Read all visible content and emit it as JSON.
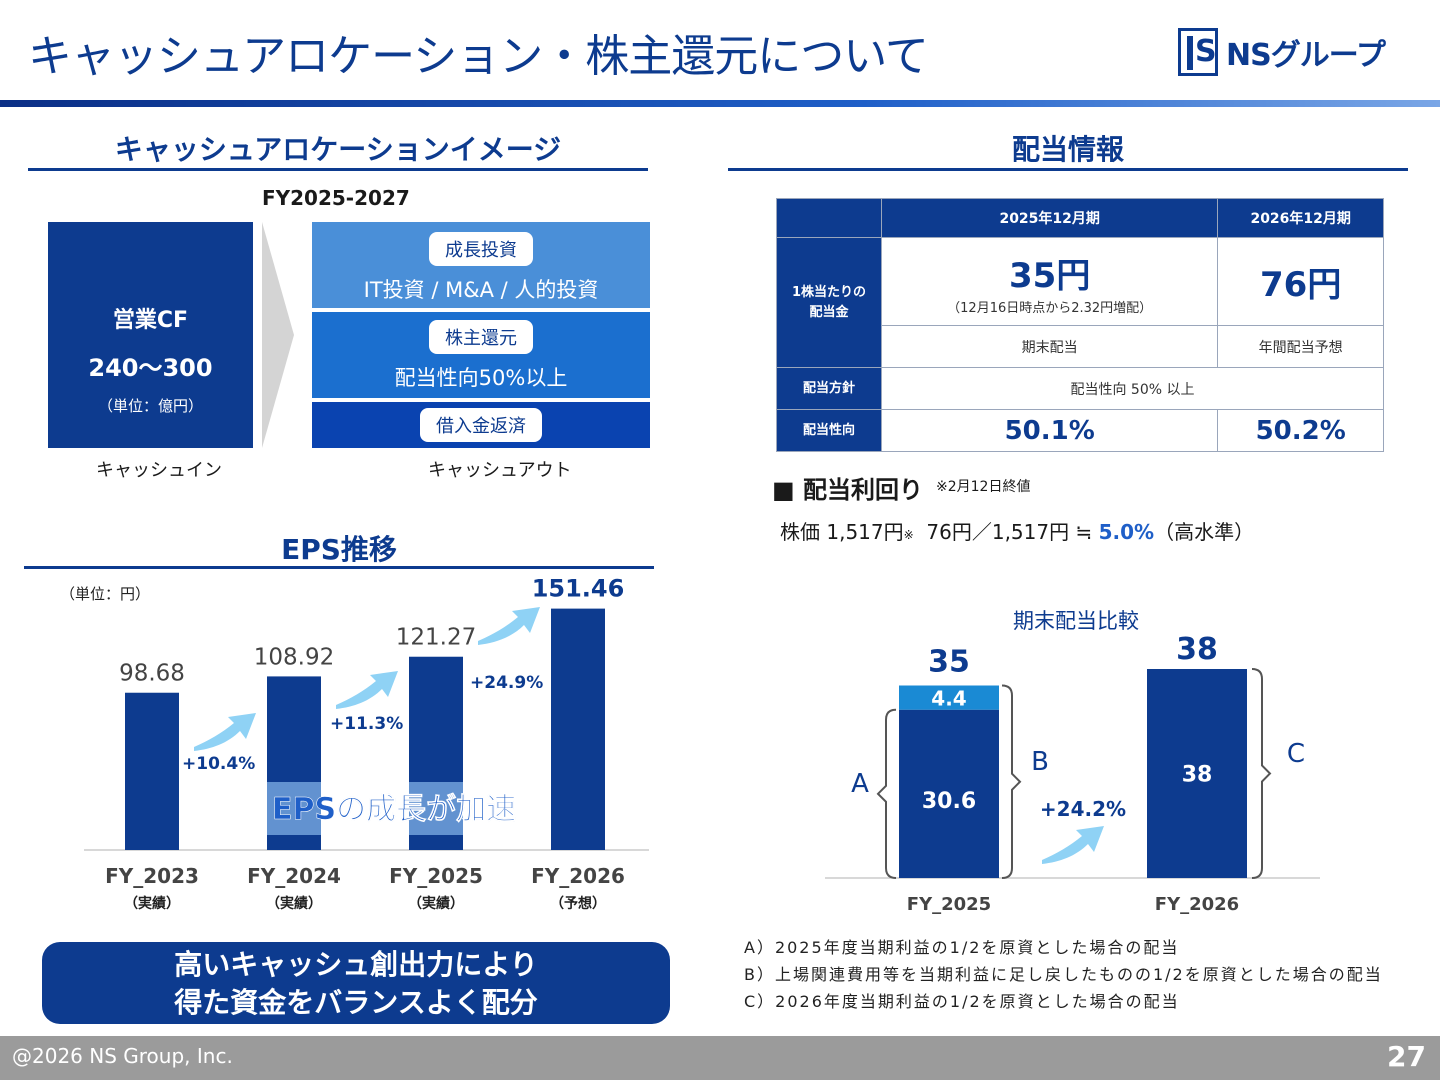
{
  "header": {
    "title": "キャッシュアロケーション・株主還元について",
    "logo_initials": "S",
    "logo_text": "NSグループ",
    "accent": "#0d3b8f"
  },
  "cash_allocation": {
    "heading": "キャッシュアロケーションイメージ",
    "period": "FY2025-2027",
    "cash_in": {
      "label": "営業CF",
      "amount": "240〜300",
      "unit": "（単位：億円）",
      "caption": "キャッシュイン"
    },
    "cash_out": {
      "caption": "キャッシュアウト",
      "items": [
        {
          "tag": "成長投資",
          "detail": "IT投資 / M&A / 人的投資"
        },
        {
          "tag": "株主還元",
          "detail": "配当性向50%以上"
        },
        {
          "tag": "借入金返済",
          "detail": ""
        }
      ]
    }
  },
  "eps": {
    "heading": "EPS推移",
    "unit": "（単位：円）",
    "highlight": "EPSの成長が加速",
    "chart_data": {
      "type": "bar",
      "categories": [
        "FY_2023",
        "FY_2024",
        "FY_2025",
        "FY_2026"
      ],
      "sublabels": [
        "（実績）",
        "（実績）",
        "（実績）",
        "（予想）"
      ],
      "values": [
        98.68,
        108.92,
        121.27,
        151.46
      ],
      "value_labels": [
        "98.68",
        "108.92",
        "121.27",
        "151.46"
      ],
      "growth": [
        "+10.4%",
        "+11.3%",
        "+24.9%"
      ],
      "ylim": [
        0,
        160
      ]
    }
  },
  "banner": {
    "line1": "高いキャッシュ創出力により",
    "line2": "得た資金をバランスよく配分"
  },
  "dividend": {
    "heading": "配当情報",
    "cols": [
      "2025年12月期",
      "2026年12月期"
    ],
    "row_dps": {
      "label_line1": "1株当たりの",
      "label_line2": "配当金",
      "v2025": "35円",
      "v2025_note": "（12月16日時点から2.32円増配）",
      "v2026": "76円"
    },
    "row_type": {
      "v2025": "期末配当",
      "v2026": "年間配当予想"
    },
    "row_policy": {
      "label": "配当方針",
      "value": "配当性向 50% 以上"
    },
    "row_payout": {
      "label": "配当性向",
      "v2025": "50.1%",
      "v2026": "50.2%"
    }
  },
  "yield": {
    "heading": "■ 配当利回り",
    "note": "※2月12日終値",
    "line_prefix": "株価  1,517円",
    "line_mark": "※",
    "line_mid": "  76円／1,517円 ≒ ",
    "line_value": "5.0%",
    "line_suffix": "（高水準）"
  },
  "dividend_compare": {
    "title": "期末配当比較",
    "chart_data": {
      "type": "bar",
      "categories": [
        "FY_2025",
        "FY_2026"
      ],
      "series": [
        {
          "name": "A",
          "values": [
            30.6,
            38
          ]
        },
        {
          "name": "",
          "values": [
            4.4,
            0
          ]
        }
      ],
      "totals": [
        "35",
        "38"
      ],
      "segment_labels": [
        "30.6",
        "4.4",
        "38"
      ],
      "growth": "+24.2%",
      "bracket_labels": [
        "A",
        "B",
        "C"
      ],
      "ylim": [
        0,
        40
      ],
      "colors": [
        "#0d3b8f",
        "#1a8ad4"
      ]
    }
  },
  "notes": [
    "A）2025年度当期利益の1/2を原資とした場合の配当",
    "B）上場関連費用等を当期利益に足し戻したものの1/2を原資とした場合の配当",
    "C）2026年度当期利益の1/2を原資とした場合の配当"
  ],
  "footer": {
    "copyright": "@2026 NS Group, Inc.",
    "page": "27"
  }
}
